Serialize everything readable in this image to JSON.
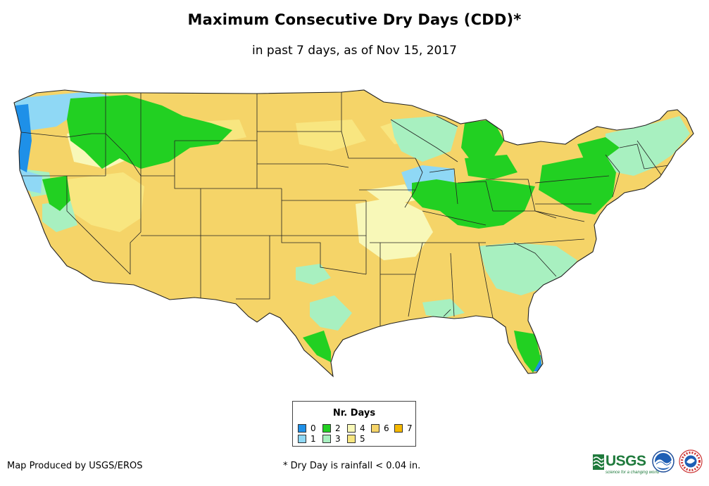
{
  "header": {
    "title": "Maximum Consecutive Dry Days (CDD)*",
    "subtitle": "in past 7 days, as of Nov 15, 2017"
  },
  "legend": {
    "title": "Nr. Days",
    "items": [
      {
        "label": "0",
        "color": "#1e90e8"
      },
      {
        "label": "1",
        "color": "#8fd8f5"
      },
      {
        "label": "2",
        "color": "#22d022"
      },
      {
        "label": "3",
        "color": "#a8f0c0"
      },
      {
        "label": "4",
        "color": "#f8f8b8"
      },
      {
        "label": "5",
        "color": "#f8e680"
      },
      {
        "label": "6",
        "color": "#f5d468"
      },
      {
        "label": "7",
        "color": "#f5b800"
      }
    ]
  },
  "footer": {
    "credit": "Map Produced by USGS/EROS",
    "note": "* Dry Day is rainfall < 0.04 in.",
    "usgs_logo": "USGS",
    "usgs_tagline": "science for a changing world"
  },
  "icons": [
    "usgs-logo",
    "noaa-logo",
    "nws-logo"
  ],
  "map_regions": {
    "base_class": "6",
    "wet_areas": [
      {
        "area": "Pacific Northwest coast",
        "class": "0"
      },
      {
        "area": "Northern California / Oregon coast",
        "class": "1"
      },
      {
        "area": "Northern Rockies (Idaho, Montana)",
        "class": "2"
      },
      {
        "area": "Iowa / Illinois",
        "class": "1"
      },
      {
        "area": "Ohio Valley / Great Lakes",
        "class": "2"
      },
      {
        "area": "Northeast",
        "class": "2"
      },
      {
        "area": "Southeast / Carolinas",
        "class": "3"
      },
      {
        "area": "South Florida",
        "class": "2"
      },
      {
        "area": "South Texas",
        "class": "2"
      }
    ]
  }
}
